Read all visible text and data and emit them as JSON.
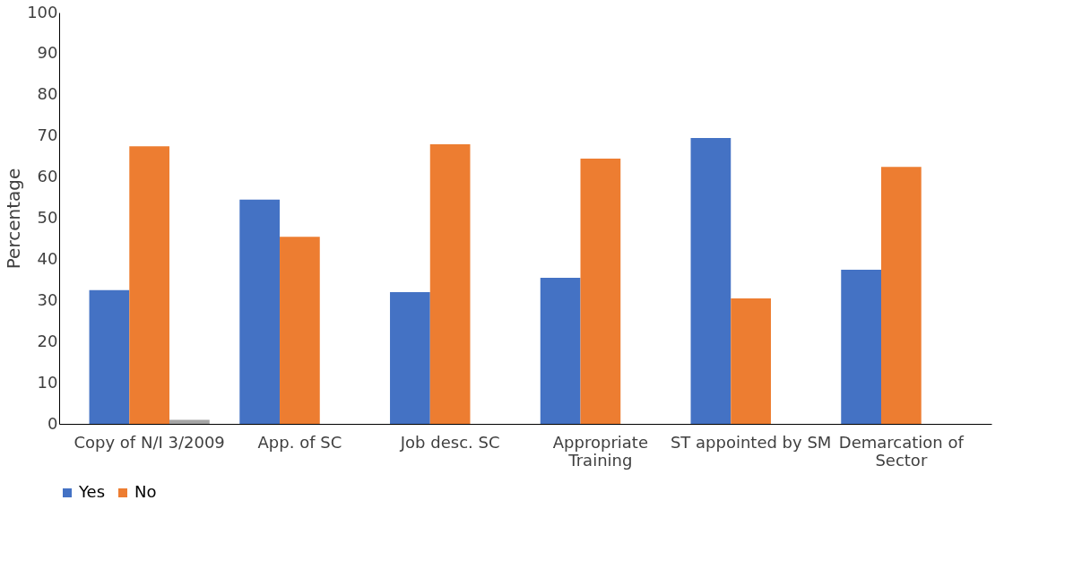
{
  "chart_data": {
    "type": "bar",
    "ylabel": "Percentage",
    "categories": [
      "Copy of N/I 3/2009",
      "App. of SC",
      "Job desc. SC",
      "Appropriate Training",
      "ST appointed by SM",
      "Demarcation of Sector"
    ],
    "series": [
      {
        "name": "Yes",
        "color": "#4472c4",
        "values": [
          32.5,
          54.5,
          32,
          35.5,
          69.5,
          37.5
        ]
      },
      {
        "name": "No",
        "color": "#ed7d31",
        "values": [
          67.5,
          45.5,
          68,
          64.5,
          30.5,
          62.5
        ]
      },
      {
        "color": "#a5a5a5",
        "values": [
          1,
          null,
          null,
          null,
          null,
          null
        ]
      }
    ],
    "ylim": [
      0,
      100
    ],
    "yticks": [
      0,
      10,
      20,
      30,
      40,
      50,
      60,
      70,
      80,
      90,
      100
    ],
    "grid": false,
    "legend": "bottom"
  }
}
